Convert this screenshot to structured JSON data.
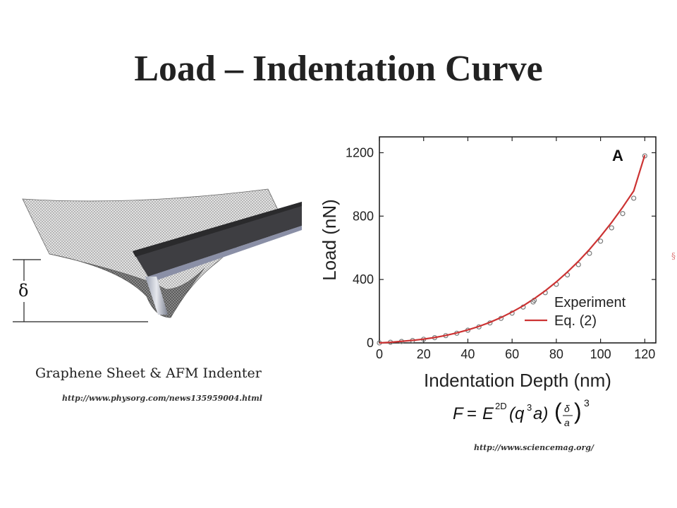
{
  "slide": {
    "title": "Load – Indentation Curve",
    "caption": "Graphene Sheet  & AFM Indenter",
    "url_left": "http://www.physorg.com/news135959004.html",
    "url_right": "http://www.sciencemag.org/",
    "delta_symbol": "δ"
  },
  "formula": {
    "F": "F",
    "eq": "=",
    "E": "E",
    "sup2D": "2D",
    "lp": "(q",
    "q3": "3",
    "arp": "a)",
    "delta": "δ",
    "a": "a",
    "exp3": "3"
  },
  "chart_data": {
    "type": "line",
    "panel_label": "A",
    "xlabel": "Indentation Depth (nm)",
    "ylabel": "Load (nN)",
    "xlim": [
      0,
      125
    ],
    "ylim": [
      0,
      1300
    ],
    "x_ticks": [
      0,
      20,
      40,
      60,
      80,
      100,
      120
    ],
    "y_ticks": [
      0,
      400,
      800,
      1200
    ],
    "legend_position": "lower-right",
    "series": [
      {
        "name": "Experiment",
        "style": "scatter",
        "color": "#7a7a7a",
        "x": [
          0,
          5,
          10,
          15,
          20,
          25,
          30,
          35,
          40,
          45,
          50,
          55,
          60,
          65,
          70,
          75,
          80,
          85,
          90,
          95,
          100,
          105,
          110,
          115,
          120
        ],
        "y": [
          0,
          4,
          9,
          15,
          23,
          33,
          46,
          61,
          80,
          101,
          126,
          155,
          188,
          226,
          269,
          317,
          370,
          429,
          494,
          565,
          642,
          726,
          816,
          913,
          1180
        ]
      },
      {
        "name": "Eq. (2)",
        "style": "line",
        "color": "#cc3333",
        "x": [
          0,
          5,
          10,
          15,
          20,
          25,
          30,
          35,
          40,
          45,
          50,
          55,
          60,
          65,
          70,
          75,
          80,
          85,
          90,
          95,
          100,
          105,
          110,
          115,
          120
        ],
        "y": [
          0,
          4,
          10,
          16,
          24,
          34,
          47,
          63,
          82,
          104,
          130,
          160,
          195,
          234,
          279,
          329,
          385,
          447,
          515,
          590,
          672,
          760,
          856,
          959,
          1185
        ]
      }
    ]
  }
}
